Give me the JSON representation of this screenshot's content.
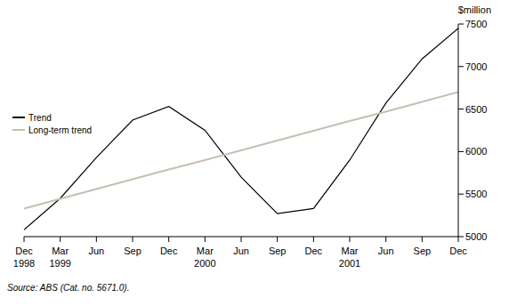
{
  "chart_data": {
    "type": "line",
    "y_label": "$million",
    "annotations": [
      "Source: ABS (Cat. no. 5671.0)."
    ],
    "categories": [
      "Dec 1998",
      "Mar 1999",
      "Jun",
      "Sep",
      "Dec",
      "Mar 2000",
      "Jun",
      "Sep",
      "Dec",
      "Mar 2001",
      "Jun",
      "Sep",
      "Dec"
    ],
    "series": [
      {
        "name": "Trend",
        "color": "#000000",
        "values": [
          5080,
          5450,
          5930,
          6370,
          6530,
          6250,
          5700,
          5270,
          5330,
          5900,
          6570,
          7090,
          7450
        ]
      },
      {
        "name": "Long-term trend",
        "color": "#c8beb4",
        "values": [
          5330,
          5445,
          5560,
          5675,
          5790,
          5900,
          6015,
          6130,
          6245,
          6360,
          6470,
          6585,
          6700
        ]
      }
    ],
    "ylim": [
      5000,
      7500
    ],
    "yticks": [
      5000,
      5500,
      6000,
      6500,
      7000,
      7500
    ],
    "legend": "left"
  }
}
